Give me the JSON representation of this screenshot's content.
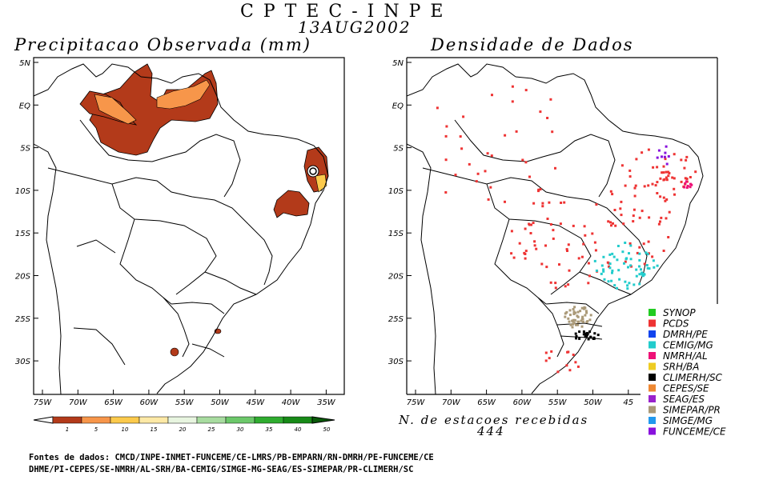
{
  "header": {
    "title": "CPTEC-INPE",
    "date": "13AUG2002"
  },
  "left_map": {
    "title": "Precipitacao Observada (mm)",
    "lat_labels": [
      "5N",
      "EQ",
      "5S",
      "10S",
      "15S",
      "20S",
      "25S",
      "30S"
    ],
    "lon_labels": [
      "75W",
      "70W",
      "65W",
      "60W",
      "55W",
      "50W",
      "45W",
      "40W",
      "35W"
    ],
    "colorbar": {
      "ticks": [
        "1",
        "5",
        "10",
        "15",
        "20",
        "25",
        "30",
        "35",
        "40",
        "50"
      ],
      "colors": [
        "#b33a1a",
        "#f7964a",
        "#fcca4c",
        "#fde9a6",
        "#e8f5e0",
        "#a8dca0",
        "#6cc86a",
        "#2fac2f",
        "#178a17",
        "#0a5a0a"
      ]
    }
  },
  "right_map": {
    "title": "Densidade de Dados",
    "lat_labels": [
      "5N",
      "EQ",
      "5S",
      "10S",
      "15S",
      "20S",
      "25S",
      "30S"
    ],
    "lon_labels": [
      "75W",
      "70W",
      "65W",
      "60W",
      "55W",
      "50W",
      "45"
    ],
    "station_count_label": "N. de estacoes recebidas",
    "station_count": "444",
    "legend": [
      {
        "label": "SYNOP",
        "color": "#22cc22"
      },
      {
        "label": "PCDS",
        "color": "#ee3333"
      },
      {
        "label": "DMRH/PE",
        "color": "#1144ee"
      },
      {
        "label": "CEMIG/MG",
        "color": "#22cccc"
      },
      {
        "label": "NMRH/AL",
        "color": "#ee1177"
      },
      {
        "label": "SRH/BA",
        "color": "#eecc22"
      },
      {
        "label": "CLIMERH/SC",
        "color": "#000000"
      },
      {
        "label": "CEPES/SE",
        "color": "#ee8833"
      },
      {
        "label": "SEAG/ES",
        "color": "#9922cc"
      },
      {
        "label": "SIMEPAR/PR",
        "color": "#aa9977"
      },
      {
        "label": "SIMGE/MG",
        "color": "#2299ee"
      },
      {
        "label": "FUNCEME/CE",
        "color": "#8811dd"
      }
    ]
  },
  "sources": {
    "line1": "Fontes de dados: CMCD/INPE-INMET-FUNCEME/CE-LMRS/PB-EMPARN/RN-DMRH/PE-FUNCEME/CE",
    "line2": "DHME/PI-CEPES/SE-NMRH/AL-SRH/BA-CEMIG/SIMGE-MG-SEAG/ES-SIMEPAR/PR-CLIMERH/SC"
  }
}
